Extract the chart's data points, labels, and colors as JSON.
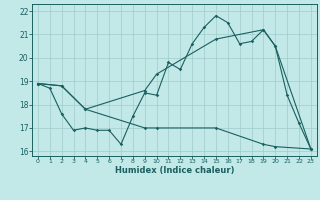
{
  "xlabel": "Humidex (Indice chaleur)",
  "background_color": "#c2e8e8",
  "grid_color": "#a0cccc",
  "line_color": "#1a6060",
  "spine_color": "#1a6060",
  "xlim": [
    -0.5,
    23.5
  ],
  "ylim": [
    15.8,
    22.3
  ],
  "yticks": [
    16,
    17,
    18,
    19,
    20,
    21,
    22
  ],
  "xticks": [
    0,
    1,
    2,
    3,
    4,
    5,
    6,
    7,
    8,
    9,
    10,
    11,
    12,
    13,
    14,
    15,
    16,
    17,
    18,
    19,
    20,
    21,
    22,
    23
  ],
  "line1_x": [
    0,
    1,
    2,
    3,
    4,
    5,
    6,
    7,
    8,
    9,
    10,
    11,
    12,
    13,
    14,
    15,
    16,
    17,
    18,
    19,
    20,
    21,
    22,
    23
  ],
  "line1_y": [
    18.9,
    18.7,
    17.6,
    16.9,
    17.0,
    16.9,
    16.9,
    16.3,
    17.5,
    18.5,
    18.4,
    19.8,
    19.5,
    20.6,
    21.3,
    21.8,
    21.5,
    20.6,
    20.7,
    21.2,
    20.5,
    18.4,
    17.2,
    16.1
  ],
  "line2_x": [
    0,
    2,
    4,
    9,
    10,
    15,
    19,
    20,
    23
  ],
  "line2_y": [
    18.9,
    18.8,
    17.8,
    18.6,
    19.3,
    20.8,
    21.2,
    20.5,
    16.1
  ],
  "line3_x": [
    0,
    2,
    4,
    9,
    10,
    15,
    19,
    20,
    23
  ],
  "line3_y": [
    18.9,
    18.8,
    17.8,
    17.0,
    17.0,
    17.0,
    16.3,
    16.2,
    16.1
  ]
}
